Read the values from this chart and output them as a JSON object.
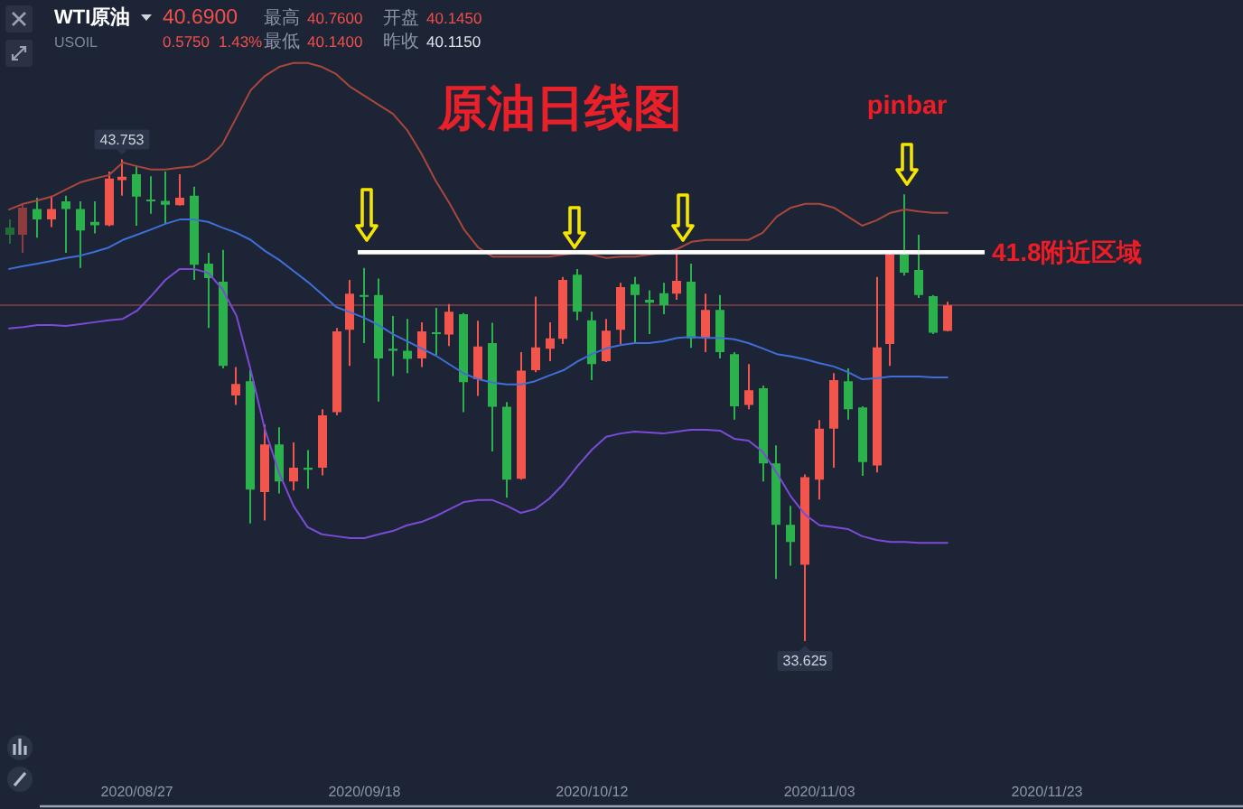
{
  "chart_data": {
    "type": "candlestick",
    "title": "原油日线图",
    "categories": [
      null,
      null,
      null,
      null,
      null,
      null,
      null,
      null,
      null,
      "2020/08/27",
      null,
      null,
      null,
      null,
      null,
      null,
      null,
      null,
      null,
      null,
      null,
      null,
      null,
      null,
      null,
      "2020/09/18",
      null,
      null,
      null,
      null,
      null,
      null,
      null,
      null,
      null,
      null,
      null,
      null,
      null,
      null,
      null,
      "2020/10/12",
      null,
      null,
      null,
      null,
      null,
      null,
      null,
      null,
      null,
      null,
      null,
      null,
      null,
      null,
      null,
      "2020/11/03",
      null,
      null,
      null,
      null,
      null,
      null,
      null,
      null,
      null,
      null,
      null,
      null,
      null,
      null,
      null,
      "2020/11/23",
      null,
      null,
      null,
      null,
      null,
      null,
      null,
      null,
      null,
      null,
      null,
      null,
      null
    ],
    "ohlc": [
      [
        42.32,
        42.49,
        41.98,
        42.17
      ],
      [
        42.17,
        42.8,
        41.79,
        42.74
      ],
      [
        42.71,
        42.95,
        42.11,
        42.49
      ],
      [
        42.49,
        42.99,
        42.33,
        42.71
      ],
      [
        42.87,
        42.99,
        41.79,
        42.71
      ],
      [
        42.71,
        42.87,
        41.47,
        42.26
      ],
      [
        42.44,
        42.87,
        42.2,
        42.37
      ],
      [
        42.37,
        43.5,
        42.35,
        43.35
      ],
      [
        43.32,
        43.753,
        42.99,
        43.39
      ],
      [
        43.44,
        43.63,
        42.36,
        42.97
      ],
      [
        42.9,
        43.4,
        42.61,
        42.88
      ],
      [
        42.88,
        43.5,
        42.4,
        42.8
      ],
      [
        42.79,
        43.44,
        42.78,
        42.95
      ],
      [
        42.99,
        43.18,
        41.22,
        41.54
      ],
      [
        41.56,
        41.79,
        40.21,
        41.26
      ],
      [
        41.18,
        41.85,
        39.36,
        39.41
      ],
      [
        38.79,
        39.39,
        38.59,
        39.03
      ],
      [
        39.09,
        39.32,
        36.1,
        36.81
      ],
      [
        36.76,
        38.18,
        36.16,
        37.76
      ],
      [
        37.76,
        38.12,
        36.73,
        36.98
      ],
      [
        36.98,
        37.8,
        36.79,
        37.27
      ],
      [
        37.27,
        37.64,
        36.83,
        37.23
      ],
      [
        37.27,
        38.5,
        37.11,
        38.37
      ],
      [
        38.44,
        40.21,
        38.37,
        40.14
      ],
      [
        40.17,
        41.22,
        39.41,
        40.93
      ],
      [
        40.9,
        41.47,
        39.89,
        40.87
      ],
      [
        40.9,
        41.25,
        38.66,
        39.57
      ],
      [
        39.77,
        40.46,
        39.2,
        39.73
      ],
      [
        39.73,
        40.4,
        39.26,
        39.56
      ],
      [
        39.57,
        40.33,
        39.39,
        40.14
      ],
      [
        40.12,
        40.63,
        39.64,
        40.08
      ],
      [
        40.07,
        40.71,
        39.83,
        40.55
      ],
      [
        40.5,
        40.52,
        38.44,
        39.07
      ],
      [
        39.13,
        40.36,
        38.78,
        39.82
      ],
      [
        39.89,
        40.32,
        37.61,
        38.55
      ],
      [
        38.55,
        38.65,
        36.64,
        37.02
      ],
      [
        37.04,
        39.7,
        37.02,
        39.31
      ],
      [
        39.32,
        40.87,
        39.28,
        39.8
      ],
      [
        39.77,
        40.33,
        39.51,
        39.99
      ],
      [
        39.98,
        41.28,
        39.87,
        41.22
      ],
      [
        41.33,
        41.45,
        40.37,
        40.55
      ],
      [
        40.37,
        40.55,
        39.11,
        39.45
      ],
      [
        39.51,
        40.4,
        39.49,
        40.15
      ],
      [
        40.17,
        41.16,
        39.87,
        41.07
      ],
      [
        41.13,
        41.28,
        39.87,
        40.9
      ],
      [
        40.8,
        41.0,
        40.08,
        40.74
      ],
      [
        40.94,
        41.16,
        40.5,
        40.69
      ],
      [
        40.93,
        41.79,
        40.8,
        41.2
      ],
      [
        41.18,
        41.56,
        39.79,
        39.99
      ],
      [
        39.99,
        40.93,
        39.7,
        40.59
      ],
      [
        40.59,
        40.9,
        39.57,
        39.7
      ],
      [
        39.66,
        39.7,
        38.28,
        38.56
      ],
      [
        38.59,
        39.45,
        38.5,
        38.9
      ],
      [
        38.94,
        39.0,
        36.98,
        37.36
      ],
      [
        37.36,
        37.74,
        34.93,
        36.07
      ],
      [
        36.07,
        36.47,
        35.21,
        35.71
      ],
      [
        35.23,
        37.13,
        33.625,
        37.07
      ],
      [
        37.02,
        38.27,
        36.6,
        38.09
      ],
      [
        38.09,
        39.26,
        37.27,
        39.11
      ],
      [
        39.09,
        39.36,
        38.28,
        38.5
      ],
      [
        38.54,
        38.56,
        37.1,
        37.39
      ],
      [
        37.32,
        41.28,
        37.17,
        39.8
      ],
      [
        39.87,
        41.79,
        39.41,
        41.75
      ],
      [
        41.75,
        43.02,
        41.31,
        41.37
      ],
      [
        41.43,
        42.17,
        40.84,
        40.9
      ],
      [
        40.88,
        40.9,
        40.08,
        40.11
      ],
      [
        40.145,
        40.76,
        40.14,
        40.69
      ],
      null,
      null,
      null,
      null,
      null,
      null,
      null,
      null,
      null,
      null,
      null,
      null,
      null,
      null,
      null,
      null,
      null,
      null,
      null,
      null
    ],
    "colors": [
      "#246b3b",
      "#8c3c3c",
      "#2bb24c",
      "#f2554b",
      "#2bb24c",
      "#2bb24c",
      "#2bb24c",
      "#f2554b",
      "#f2554b",
      "#2bb24c",
      "#2bb24c",
      "#2bb24c",
      "#f2554b",
      "#2bb24c",
      "#2bb24c",
      "#2bb24c",
      "#f2554b",
      "#2bb24c",
      "#f2554b",
      "#2bb24c",
      "#f2554b",
      "#2bb24c",
      "#f2554b",
      "#f2554b",
      "#f2554b",
      "#2bb24c",
      "#2bb24c",
      "#2bb24c",
      "#2bb24c",
      "#f2554b",
      "#2bb24c",
      "#f2554b",
      "#2bb24c",
      "#f2554b",
      "#2bb24c",
      "#2bb24c",
      "#f2554b",
      "#f2554b",
      "#f2554b",
      "#f2554b",
      "#2bb24c",
      "#2bb24c",
      "#f2554b",
      "#f2554b",
      "#2bb24c",
      "#2bb24c",
      "#2bb24c",
      "#f2554b",
      "#2bb24c",
      "#f2554b",
      "#2bb24c",
      "#2bb24c",
      "#f2554b",
      "#2bb24c",
      "#2bb24c",
      "#2bb24c",
      "#f2554b",
      "#f2554b",
      "#f2554b",
      "#2bb24c",
      "#2bb24c",
      "#f2554b",
      "#f2554b",
      "#2bb24c",
      "#2bb24c",
      "#2bb24c",
      "#f2554b",
      null,
      null,
      null,
      null,
      null,
      null,
      null,
      null,
      null,
      null,
      null,
      null,
      null,
      null,
      null,
      null,
      null,
      null,
      null,
      null
    ],
    "series": [
      {
        "type": "line",
        "color": "#a9473c",
        "values": [
          42.7,
          42.82,
          42.89,
          42.97,
          43.12,
          43.27,
          43.35,
          43.42,
          43.69,
          43.61,
          43.54,
          43.54,
          43.58,
          43.61,
          43.77,
          44.07,
          44.64,
          45.21,
          45.51,
          45.7,
          45.78,
          45.78,
          45.7,
          45.55,
          45.28,
          45.09,
          44.9,
          44.71,
          44.37,
          43.88,
          43.31,
          42.82,
          42.28,
          41.9,
          41.71,
          41.71,
          41.71,
          41.71,
          41.71,
          41.75,
          41.79,
          41.75,
          41.68,
          41.71,
          41.71,
          41.75,
          41.79,
          41.87,
          42.02,
          42.06,
          42.06,
          42.06,
          42.06,
          42.21,
          42.55,
          42.74,
          42.82,
          42.82,
          42.74,
          42.55,
          42.36,
          42.47,
          42.63,
          42.7,
          42.66,
          42.63,
          42.63,
          null,
          null,
          null,
          null,
          null,
          null,
          null,
          null,
          null,
          null,
          null,
          null,
          null,
          null,
          null,
          null,
          null,
          null,
          null,
          null
        ]
      },
      {
        "type": "line",
        "color": "#3f6fd6",
        "values": [
          41.45,
          41.51,
          41.56,
          41.62,
          41.68,
          41.73,
          41.81,
          41.9,
          42.06,
          42.17,
          42.28,
          42.4,
          42.49,
          42.49,
          42.44,
          42.32,
          42.21,
          42.06,
          41.83,
          41.64,
          41.41,
          41.18,
          40.92,
          40.65,
          40.54,
          40.42,
          40.27,
          40.08,
          39.93,
          39.78,
          39.63,
          39.44,
          39.25,
          39.13,
          39.06,
          39.02,
          39.02,
          39.09,
          39.21,
          39.32,
          39.51,
          39.66,
          39.78,
          39.85,
          39.89,
          39.89,
          39.93,
          40.0,
          40.02,
          40.0,
          40.0,
          39.97,
          39.89,
          39.78,
          39.66,
          39.61,
          39.55,
          39.47,
          39.4,
          39.28,
          39.13,
          39.15,
          39.19,
          39.19,
          39.19,
          39.17,
          39.17,
          null,
          null,
          null,
          null,
          null,
          null,
          null,
          null,
          null,
          null,
          null,
          null,
          null,
          null,
          null,
          null,
          null,
          null,
          null,
          null
        ]
      },
      {
        "type": "line",
        "color": "#7b4bd6",
        "values": [
          40.2,
          40.23,
          40.27,
          40.27,
          40.25,
          40.29,
          40.33,
          40.37,
          40.4,
          40.57,
          40.88,
          41.22,
          41.45,
          41.45,
          41.37,
          41.03,
          40.46,
          39.32,
          38.07,
          37.16,
          36.47,
          36.02,
          35.87,
          35.83,
          35.79,
          35.79,
          35.87,
          35.94,
          36.06,
          36.13,
          36.25,
          36.4,
          36.55,
          36.59,
          36.59,
          36.47,
          36.32,
          36.4,
          36.62,
          36.93,
          37.31,
          37.65,
          37.92,
          37.99,
          38.03,
          38.01,
          37.99,
          38.03,
          38.07,
          38.07,
          38.05,
          37.88,
          37.84,
          37.61,
          37.16,
          36.66,
          36.28,
          36.06,
          36.02,
          35.98,
          35.83,
          35.75,
          35.71,
          35.71,
          35.69,
          35.69,
          35.69,
          null,
          null,
          null,
          null,
          null,
          null,
          null,
          null,
          null,
          null,
          null,
          null,
          null,
          null,
          null,
          null,
          null,
          null,
          null,
          null
        ]
      }
    ],
    "ref_lines": [
      {
        "axis": "y",
        "value": 40.69,
        "color": "#6a3a44"
      },
      {
        "axis": "y",
        "value": 41.8,
        "label": "41.8附近区域",
        "color": "#ffffff"
      }
    ],
    "annotations": [
      "WTI原油",
      "USOIL",
      "40.6900",
      "0.5750",
      "1.43%",
      "最高",
      "40.7600",
      "开盘",
      "40.1450",
      "最低",
      "40.1400",
      "昨收",
      "40.1150",
      "pinbar",
      {
        "text": "43.753",
        "y": 43.753
      },
      {
        "text": "33.625",
        "y": 33.625
      }
    ]
  }
}
